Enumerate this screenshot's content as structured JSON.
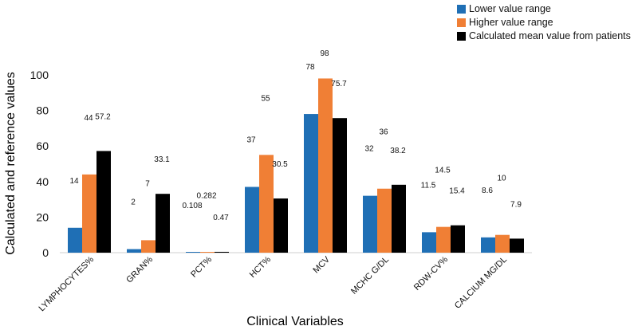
{
  "chart_data": {
    "type": "bar",
    "categories": [
      "LYMPHOCYTES%",
      "GRAN%",
      "PCT%",
      "HCT%",
      "MCV",
      "MCHC G/DL",
      "RDW-CV%",
      "CALCIUM MG/DL"
    ],
    "series": [
      {
        "name": "Lower value range",
        "color": "#1f6fb5",
        "values": [
          14,
          2,
          0.108,
          37,
          78,
          32,
          11.5,
          8.6
        ],
        "labels": [
          "14",
          "2",
          "0.108",
          "37",
          "78",
          "32",
          "11.5",
          "8.6"
        ]
      },
      {
        "name": "Higher value range",
        "color": "#f07f35",
        "values": [
          44,
          7,
          0.282,
          55,
          98,
          36,
          14.5,
          10
        ],
        "labels": [
          "44",
          "7",
          "0.282",
          "55",
          "98",
          "36",
          "14.5",
          "10"
        ]
      },
      {
        "name": "Calculated mean value from patients",
        "color": "#000000",
        "values": [
          57.2,
          33.1,
          0.47,
          30.5,
          75.7,
          38.2,
          15.4,
          7.9
        ],
        "labels": [
          "57.2",
          "33.1",
          "0.47",
          "30.5",
          "75.7",
          "38.2",
          "15.4",
          "7.9"
        ]
      }
    ],
    "xlabel": "Clinical Variables",
    "ylabel": "Calculated and reference values",
    "ylim": [
      0,
      100
    ],
    "yticks": [
      "0",
      "20",
      "40",
      "60",
      "80",
      "100"
    ],
    "grid": false,
    "legend_position": "top-right"
  }
}
